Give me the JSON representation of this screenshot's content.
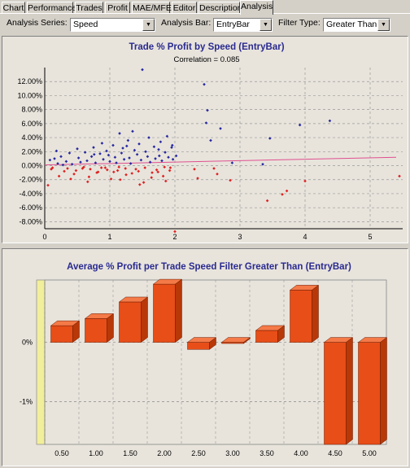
{
  "tabs": [
    {
      "label": "Chart",
      "active": false
    },
    {
      "label": "Performance",
      "active": false
    },
    {
      "label": "Trades",
      "active": false
    },
    {
      "label": "Profit",
      "active": false
    },
    {
      "label": "MAE/MFE",
      "active": false
    },
    {
      "label": "Editor",
      "active": false
    },
    {
      "label": "Description",
      "active": false
    },
    {
      "label": "Analysis",
      "active": true
    }
  ],
  "controls": {
    "analysis_series_label": "Analysis Series:",
    "analysis_series_value": "Speed",
    "analysis_bar_label": "Analysis Bar:",
    "analysis_bar_value": "EntryBar",
    "filter_type_label": "Filter Type:",
    "filter_type_value": "Greater Than"
  },
  "chart_data": [
    {
      "type": "scatter",
      "title": "Trade % Profit by Speed (EntryBar)",
      "subtitle": "Correlation = 0.085",
      "xlim": [
        0,
        5.5
      ],
      "ylim": [
        -9,
        14
      ],
      "x_ticks": [
        0,
        1,
        2,
        3,
        4,
        5
      ],
      "y_ticks": [
        12,
        10,
        8,
        6,
        4,
        2,
        0,
        -2,
        -4,
        -6,
        -8
      ],
      "y_tick_labels": [
        "12.00%",
        "10.00%",
        "8.00%",
        "6.00%",
        "4.00%",
        "2.00%",
        "0.00%",
        "-2.00%",
        "-4.00%",
        "-6.00%",
        "-8.00%"
      ],
      "grid": true,
      "colors": {
        "positive": "#2828a0",
        "negative": "#e02020",
        "trend": "#e05090"
      },
      "trendline": {
        "x": [
          0,
          5.4
        ],
        "y": [
          0.1,
          1.2
        ]
      },
      "points": [
        [
          0.08,
          0.8
        ],
        [
          0.1,
          -0.5
        ],
        [
          0.15,
          1.0
        ],
        [
          0.2,
          0.3
        ],
        [
          0.25,
          1.3
        ],
        [
          0.3,
          -0.8
        ],
        [
          0.33,
          0.6
        ],
        [
          0.38,
          1.8
        ],
        [
          0.42,
          0.2
        ],
        [
          0.45,
          -1.2
        ],
        [
          0.5,
          2.4
        ],
        [
          0.52,
          1.1
        ],
        [
          0.55,
          0.5
        ],
        [
          0.58,
          -0.4
        ],
        [
          0.62,
          1.9
        ],
        [
          0.65,
          0.7
        ],
        [
          0.68,
          -1.6
        ],
        [
          0.72,
          1.3
        ],
        [
          0.75,
          2.6
        ],
        [
          0.78,
          0.4
        ],
        [
          0.82,
          -0.9
        ],
        [
          0.85,
          1.7
        ],
        [
          0.88,
          3.2
        ],
        [
          0.9,
          0.9
        ],
        [
          0.93,
          -0.3
        ],
        [
          0.95,
          2.1
        ],
        [
          0.98,
          1.5
        ],
        [
          1.0,
          0.6
        ],
        [
          1.02,
          -1.9
        ],
        [
          1.05,
          2.9
        ],
        [
          1.08,
          1.2
        ],
        [
          1.1,
          0.4
        ],
        [
          1.12,
          -0.7
        ],
        [
          1.15,
          4.6
        ],
        [
          1.18,
          1.8
        ],
        [
          1.2,
          2.5
        ],
        [
          1.22,
          0.9
        ],
        [
          1.25,
          -1.3
        ],
        [
          1.28,
          3.6
        ],
        [
          1.3,
          1.1
        ],
        [
          1.32,
          0.3
        ],
        [
          1.35,
          4.9
        ],
        [
          1.38,
          2.2
        ],
        [
          1.4,
          -0.5
        ],
        [
          1.42,
          1.6
        ],
        [
          1.45,
          3.1
        ],
        [
          1.48,
          0.8
        ],
        [
          1.5,
          13.7
        ],
        [
          1.52,
          -2.4
        ],
        [
          1.55,
          2.0
        ],
        [
          1.58,
          1.3
        ],
        [
          1.6,
          4.0
        ],
        [
          1.62,
          0.5
        ],
        [
          1.65,
          -1.0
        ],
        [
          1.68,
          2.7
        ],
        [
          1.7,
          1.0
        ],
        [
          1.72,
          -0.6
        ],
        [
          1.75,
          2.3
        ],
        [
          1.78,
          3.4
        ],
        [
          1.8,
          0.7
        ],
        [
          1.82,
          -1.5
        ],
        [
          1.85,
          1.9
        ],
        [
          1.88,
          4.2
        ],
        [
          1.9,
          1.2
        ],
        [
          1.93,
          -0.3
        ],
        [
          1.95,
          2.6
        ],
        [
          1.97,
          0.9
        ],
        [
          2.0,
          -9.4
        ],
        [
          2.02,
          1.4
        ],
        [
          2.3,
          -0.5
        ],
        [
          2.35,
          -1.8
        ],
        [
          2.45,
          11.6
        ],
        [
          2.48,
          6.1
        ],
        [
          2.5,
          7.9
        ],
        [
          2.55,
          3.6
        ],
        [
          2.6,
          -0.4
        ],
        [
          2.65,
          -1.2
        ],
        [
          2.7,
          5.3
        ],
        [
          2.85,
          -2.1
        ],
        [
          2.88,
          0.4
        ],
        [
          3.35,
          0.2
        ],
        [
          3.42,
          -5.0
        ],
        [
          3.46,
          3.9
        ],
        [
          3.65,
          -4.1
        ],
        [
          3.72,
          -3.6
        ],
        [
          3.92,
          5.8
        ],
        [
          4.0,
          -2.2
        ],
        [
          4.38,
          6.4
        ],
        [
          5.45,
          -1.5
        ],
        [
          0.12,
          -0.3
        ],
        [
          0.22,
          -1.5
        ],
        [
          0.28,
          0.1
        ],
        [
          0.35,
          -0.4
        ],
        [
          0.48,
          -0.7
        ],
        [
          0.6,
          -0.2
        ],
        [
          0.7,
          -0.5
        ],
        [
          0.8,
          -1.0
        ],
        [
          0.87,
          -0.3
        ],
        [
          0.96,
          -0.6
        ],
        [
          1.06,
          -0.9
        ],
        [
          1.14,
          -0.2
        ],
        [
          1.24,
          -0.4
        ],
        [
          1.34,
          -1.1
        ],
        [
          1.44,
          -0.8
        ],
        [
          1.54,
          -0.3
        ],
        [
          1.64,
          -1.7
        ],
        [
          1.74,
          -0.9
        ],
        [
          1.84,
          -0.2
        ],
        [
          1.92,
          -0.7
        ],
        [
          0.05,
          -2.8
        ],
        [
          0.4,
          -1.9
        ],
        [
          0.66,
          -2.3
        ],
        [
          1.16,
          -2.0
        ],
        [
          1.46,
          -2.7
        ],
        [
          1.86,
          -2.2
        ],
        [
          0.18,
          2.1
        ],
        [
          0.76,
          1.6
        ],
        [
          1.26,
          2.8
        ],
        [
          1.76,
          1.4
        ],
        [
          1.96,
          2.9
        ]
      ]
    },
    {
      "type": "bar",
      "title": "Average % Profit per Trade Speed Filter Greater Than (EntryBar)",
      "categories": [
        "0.50",
        "1.00",
        "1.50",
        "2.00",
        "2.50",
        "3.00",
        "3.50",
        "4.00",
        "4.50",
        "5.00"
      ],
      "values": [
        0.28,
        0.4,
        0.68,
        0.98,
        -0.12,
        -0.02,
        0.2,
        0.88,
        -1.72,
        -1.72
      ],
      "ylim": [
        -1.72,
        1.05
      ],
      "y_ticks": [
        0,
        -1
      ],
      "y_tick_labels": [
        "0%",
        "-1%"
      ],
      "grid": true,
      "colors": {
        "bar_front": "#e84e18",
        "bar_top": "#f47a48",
        "bar_side": "#b83808",
        "wall": "#f2ef9a"
      }
    }
  ]
}
